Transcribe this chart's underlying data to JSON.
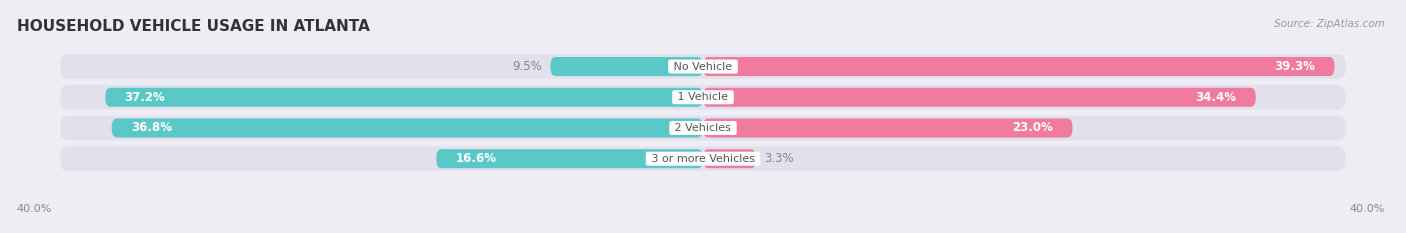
{
  "title": "HOUSEHOLD VEHICLE USAGE IN ATLANTA",
  "source": "Source: ZipAtlas.com",
  "categories": [
    "No Vehicle",
    "1 Vehicle",
    "2 Vehicles",
    "3 or more Vehicles"
  ],
  "owner_values": [
    9.5,
    37.2,
    36.8,
    16.6
  ],
  "renter_values": [
    39.3,
    34.4,
    23.0,
    3.3
  ],
  "owner_color": "#5BC8C8",
  "renter_color": "#F07AA0",
  "bg_color": "#EEEDF4",
  "bar_bg_color": "#E2E0EC",
  "xlim": 40.0,
  "bar_height": 0.62,
  "title_fontsize": 11,
  "label_fontsize": 8.5,
  "category_fontsize": 8.0,
  "value_color": "white",
  "cat_color": "#555555"
}
